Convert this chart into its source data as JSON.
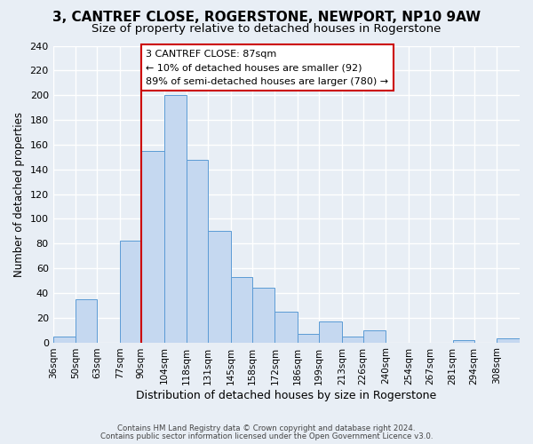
{
  "title": "3, CANTREF CLOSE, ROGERSTONE, NEWPORT, NP10 9AW",
  "subtitle": "Size of property relative to detached houses in Rogerstone",
  "xlabel": "Distribution of detached houses by size in Rogerstone",
  "ylabel": "Number of detached properties",
  "bin_labels": [
    "36sqm",
    "50sqm",
    "63sqm",
    "77sqm",
    "90sqm",
    "104sqm",
    "118sqm",
    "131sqm",
    "145sqm",
    "158sqm",
    "172sqm",
    "186sqm",
    "199sqm",
    "213sqm",
    "226sqm",
    "240sqm",
    "254sqm",
    "267sqm",
    "281sqm",
    "294sqm",
    "308sqm"
  ],
  "bin_edges": [
    36,
    50,
    63,
    77,
    90,
    104,
    118,
    131,
    145,
    158,
    172,
    186,
    199,
    213,
    226,
    240,
    254,
    267,
    281,
    294,
    308,
    322
  ],
  "bar_heights": [
    5,
    35,
    0,
    82,
    155,
    200,
    148,
    90,
    53,
    44,
    25,
    7,
    17,
    5,
    10,
    0,
    0,
    0,
    2,
    0,
    3
  ],
  "bar_color": "#c5d8f0",
  "bar_edge_color": "#5b9bd5",
  "vline_x": 90,
  "vline_color": "#cc0000",
  "ylim": [
    0,
    240
  ],
  "yticks": [
    0,
    20,
    40,
    60,
    80,
    100,
    120,
    140,
    160,
    180,
    200,
    220,
    240
  ],
  "annotation_title": "3 CANTREF CLOSE: 87sqm",
  "annotation_line1": "← 10% of detached houses are smaller (92)",
  "annotation_line2": "89% of semi-detached houses are larger (780) →",
  "annotation_box_color": "#ffffff",
  "annotation_box_edge_color": "#cc0000",
  "footer1": "Contains HM Land Registry data © Crown copyright and database right 2024.",
  "footer2": "Contains public sector information licensed under the Open Government Licence v3.0.",
  "background_color": "#e8eef5",
  "plot_background_color": "#e8eef5",
  "grid_color": "#ffffff",
  "title_fontsize": 11,
  "subtitle_fontsize": 9.5
}
